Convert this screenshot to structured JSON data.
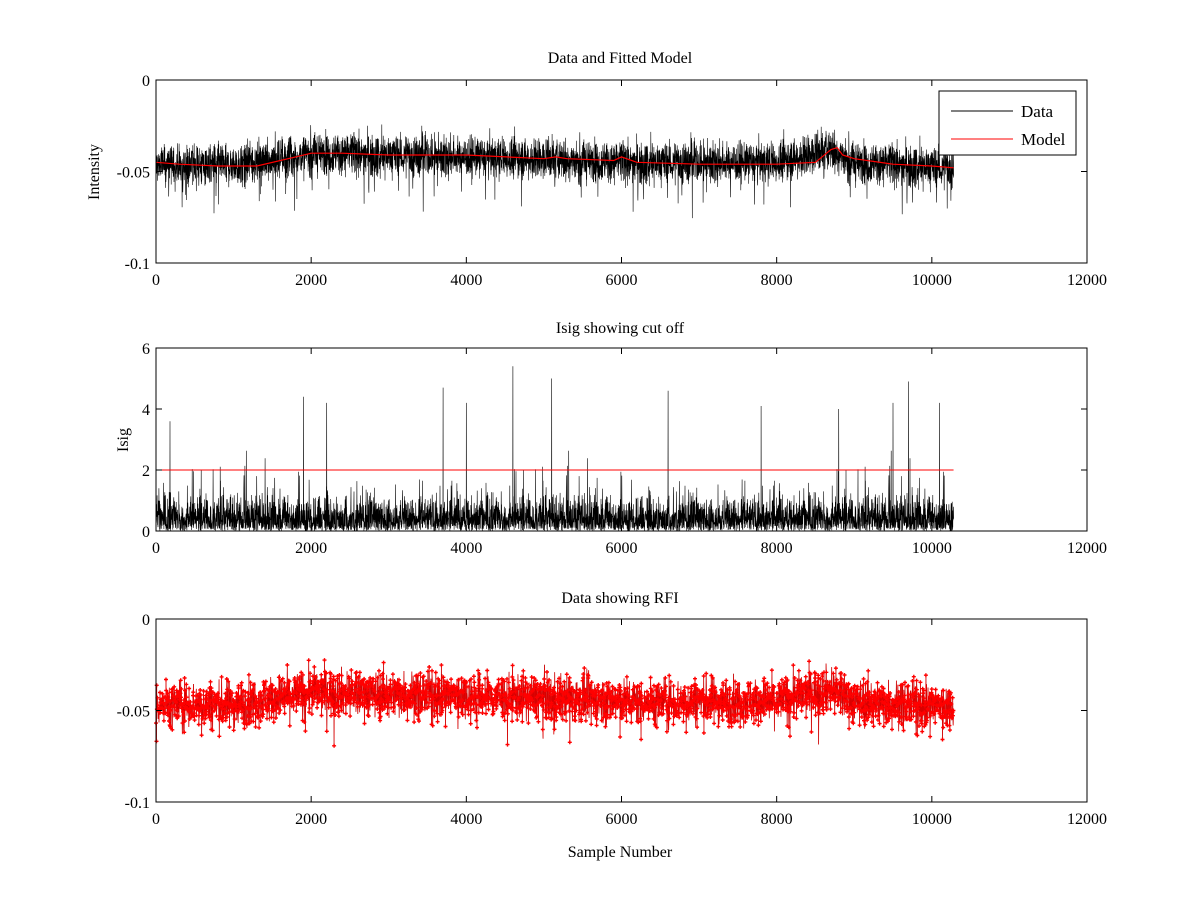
{
  "chart_data": [
    {
      "type": "line",
      "title": "Data and Fitted Model",
      "xlabel": "",
      "ylabel": "Intensity",
      "xlim": [
        0,
        12000
      ],
      "ylim": [
        -0.1,
        0
      ],
      "xticks": [
        0,
        2000,
        4000,
        6000,
        8000,
        10000,
        12000
      ],
      "xtick_labels": [
        "0",
        "2000",
        "4000",
        "6000",
        "8000",
        "10000",
        "12000"
      ],
      "yticks": [
        -0.1,
        -0.05,
        0
      ],
      "ytick_labels": [
        "-0.1",
        "-0.05",
        "0"
      ],
      "legend": {
        "location": "top-right",
        "entries": [
          "Data",
          "Model"
        ]
      },
      "series": [
        {
          "name": "Data",
          "color": "#000000",
          "samples": 10280,
          "center": -0.043,
          "spread": 0.008,
          "trend": [
            [
              0,
              -0.046
            ],
            [
              1000,
              -0.047
            ],
            [
              2000,
              -0.04
            ],
            [
              3000,
              -0.041
            ],
            [
              5000,
              -0.043
            ],
            [
              6000,
              -0.045
            ],
            [
              8000,
              -0.045
            ],
            [
              8700,
              -0.038
            ],
            [
              9000,
              -0.045
            ],
            [
              10280,
              -0.048
            ]
          ]
        },
        {
          "name": "Model",
          "color": "#ff0000",
          "x": [
            0,
            300,
            800,
            1300,
            1800,
            2000,
            2400,
            3000,
            4000,
            5000,
            5150,
            5300,
            5900,
            6000,
            6200,
            7000,
            8000,
            8500,
            8700,
            8780,
            8850,
            9000,
            9500,
            10000,
            10280
          ],
          "y": [
            -0.045,
            -0.046,
            -0.047,
            -0.047,
            -0.042,
            -0.04,
            -0.04,
            -0.041,
            -0.041,
            -0.043,
            -0.042,
            -0.043,
            -0.044,
            -0.042,
            -0.045,
            -0.046,
            -0.046,
            -0.045,
            -0.038,
            -0.037,
            -0.041,
            -0.043,
            -0.046,
            -0.047,
            -0.048
          ]
        }
      ]
    },
    {
      "type": "line",
      "title": "Isig showing cut off",
      "xlabel": "",
      "ylabel": "Isig",
      "xlim": [
        0,
        12000
      ],
      "ylim": [
        0,
        6
      ],
      "xticks": [
        0,
        2000,
        4000,
        6000,
        8000,
        10000,
        12000
      ],
      "xtick_labels": [
        "0",
        "2000",
        "4000",
        "6000",
        "8000",
        "10000",
        "12000"
      ],
      "yticks": [
        0,
        2,
        4,
        6
      ],
      "ytick_labels": [
        "0",
        "2",
        "4",
        "6"
      ],
      "series": [
        {
          "name": "Isig",
          "color": "#000000",
          "samples": 10280,
          "typical_max": 1.6,
          "peaks": [
            [
              180,
              3.6
            ],
            [
              1900,
              4.4
            ],
            [
              2200,
              4.2
            ],
            [
              3700,
              4.7
            ],
            [
              4000,
              4.2
            ],
            [
              4600,
              5.4
            ],
            [
              5100,
              5.0
            ],
            [
              6600,
              4.6
            ],
            [
              7800,
              4.1
            ],
            [
              8800,
              4.0
            ],
            [
              9500,
              4.2
            ],
            [
              9700,
              4.9
            ],
            [
              10100,
              4.2
            ]
          ]
        },
        {
          "name": "Cut off",
          "color": "#ff0000",
          "x": [
            0,
            10280
          ],
          "y": [
            2,
            2
          ]
        }
      ]
    },
    {
      "type": "scatter",
      "title": "Data showing RFI",
      "xlabel": "Sample Number",
      "ylabel": "",
      "xlim": [
        0,
        12000
      ],
      "ylim": [
        -0.1,
        0
      ],
      "xticks": [
        0,
        2000,
        4000,
        6000,
        8000,
        10000,
        12000
      ],
      "xtick_labels": [
        "0",
        "2000",
        "4000",
        "6000",
        "8000",
        "10000",
        "12000"
      ],
      "yticks": [
        -0.1,
        -0.05,
        0
      ],
      "ytick_labels": [
        "-0.1",
        "-0.05",
        "0"
      ],
      "series": [
        {
          "name": "Data",
          "color": "#000000",
          "samples": 10280,
          "center": -0.043,
          "spread": 0.009
        },
        {
          "name": "RFI",
          "color": "#ff0000",
          "marker": "+",
          "samples": 10280,
          "center": -0.043,
          "spread": 0.009
        }
      ]
    }
  ]
}
